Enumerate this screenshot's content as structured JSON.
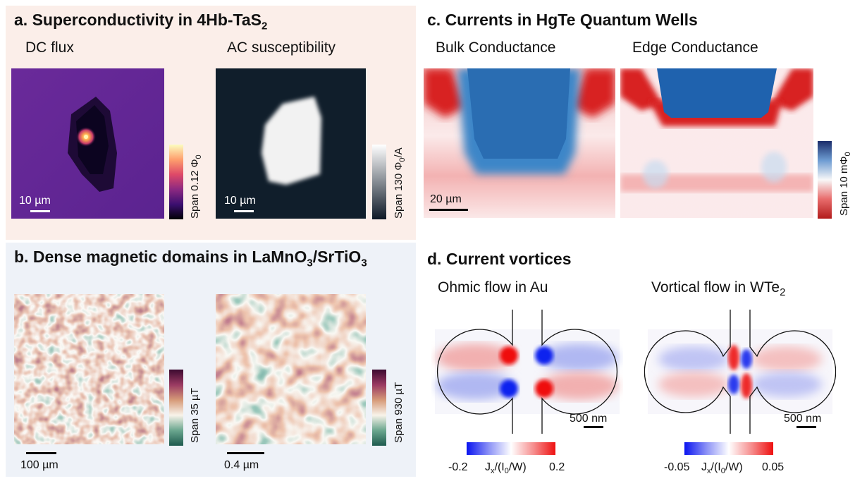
{
  "panel_a": {
    "title": "a. Superconductivity in 4Hb-TaS",
    "title_sub": "2",
    "left_label": "DC flux",
    "right_label": "AC susceptibility",
    "left_scalebar": "10 µm",
    "right_scalebar": "10 µm",
    "left_colorbar": "Span 0.12 Φ",
    "left_colorbar_sub": "0",
    "right_colorbar": "Span 130 Φ",
    "right_colorbar_sub": "0",
    "right_colorbar_unit": "/A",
    "bg_color": "#fbeee9"
  },
  "panel_b": {
    "title": "b. Dense magnetic domains in LaMnO",
    "title_sub1": "3",
    "title_mid": "/SrTiO",
    "title_sub2": "3",
    "left_scalebar": "100 µm",
    "right_scalebar": "0.4 µm",
    "left_colorbar": "Span 35 µT",
    "right_colorbar": "Span 930 µT",
    "bg_color": "#eef2f8"
  },
  "panel_c": {
    "title": "c. Currents in HgTe Quantum Wells",
    "left_label": "Bulk Conductance",
    "right_label": "Edge Conductance",
    "scalebar": "20 µm",
    "colorbar": "Span 10 mΦ",
    "colorbar_sub": "0"
  },
  "panel_d": {
    "title": "d. Current vortices",
    "left_label": "Ohmic flow in Au",
    "right_label": "Vortical flow in WTe",
    "right_label_sub": "2",
    "left_scalebar": "500 nm",
    "right_scalebar": "500 nm",
    "left_min": "-0.2",
    "left_max": "0.2",
    "right_min": "-0.05",
    "right_max": "0.05",
    "axis_label_j": "J",
    "axis_label_sub": "x",
    "axis_label_mid": "/(I",
    "axis_label_sub2": "0",
    "axis_label_end": "/W)"
  }
}
